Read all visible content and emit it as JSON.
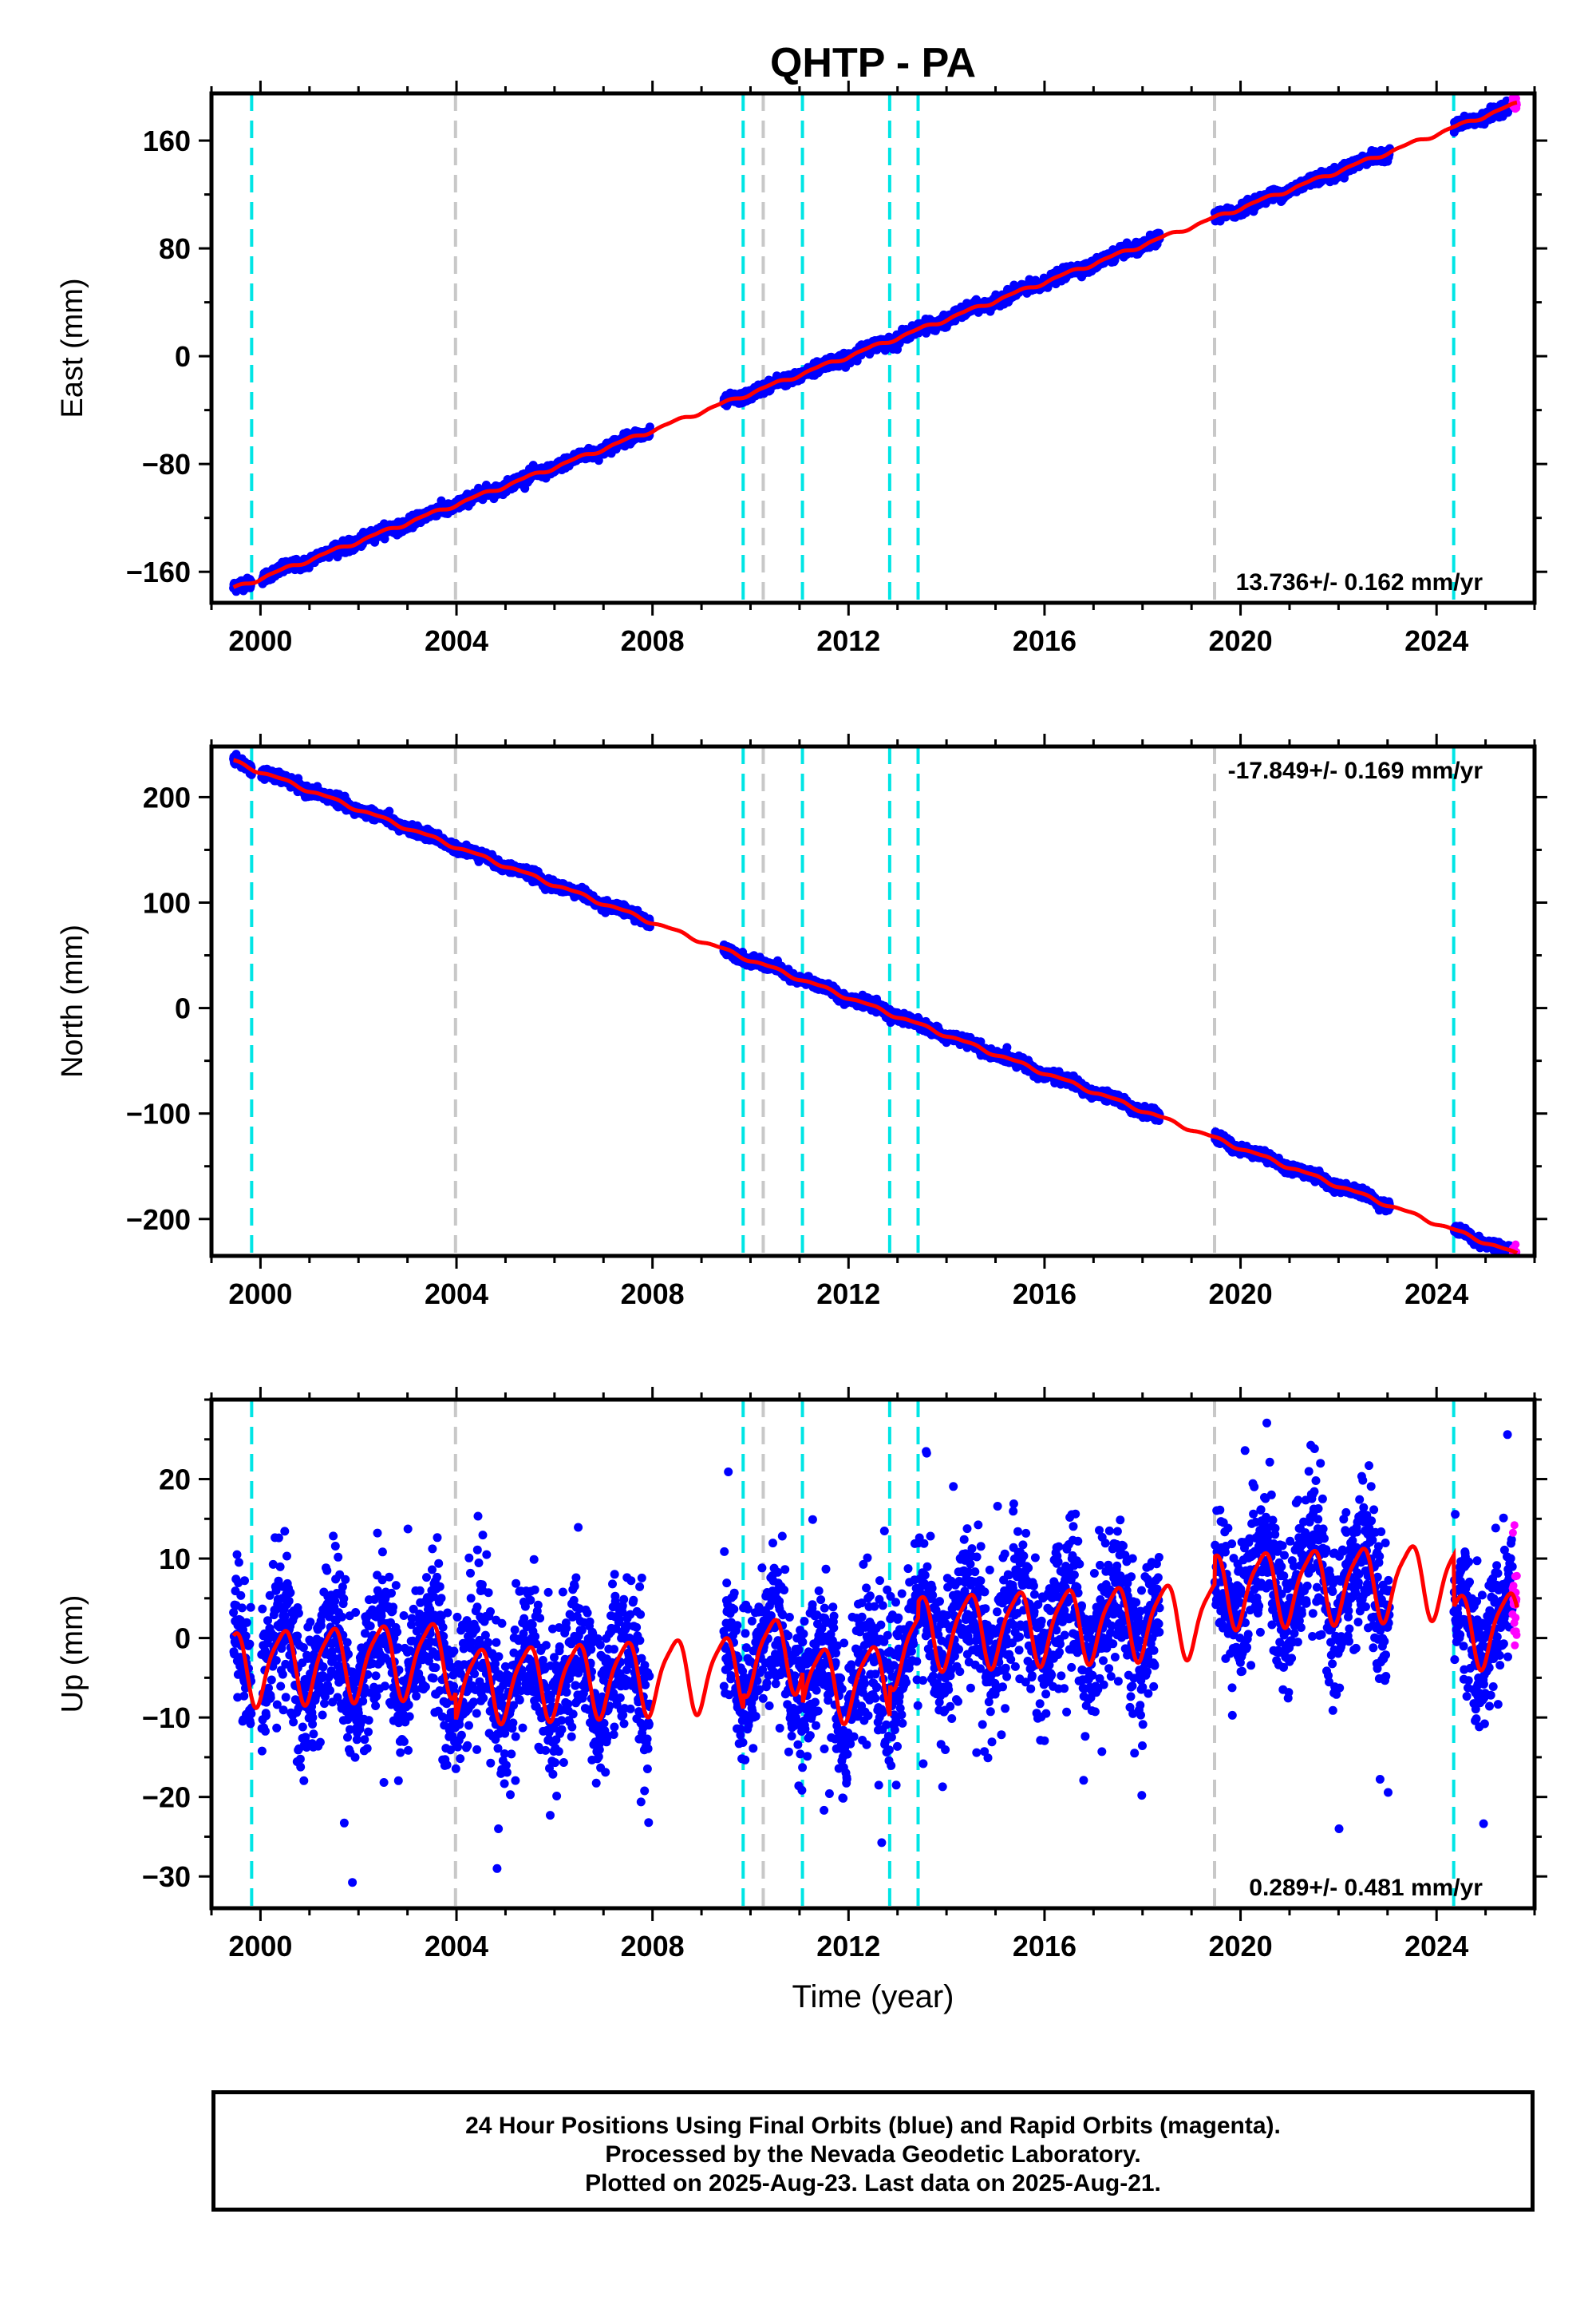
{
  "title": "QHTP - PA",
  "xlabel": "Time (year)",
  "colors": {
    "final": "#0000ff",
    "rapid": "#ff00ff",
    "model": "#ff0000",
    "equipment": "#00e5e5",
    "other": "#c8c8c8"
  },
  "offsets": {
    "cyan": [
      1999.82,
      2009.85,
      2011.06,
      2012.84,
      2013.42,
      2024.35
    ],
    "gray": [
      2003.98,
      2010.26,
      2019.47
    ]
  },
  "footer": {
    "line1": "24 Hour Positions Using Final Orbits (blue) and Rapid Orbits (magenta).",
    "line2": "Processed by the Nevada Geodetic Laboratory.",
    "line3": "Plotted on 2025-Aug-23. Last data on 2025-Aug-21."
  },
  "chart_data": [
    {
      "type": "scatter",
      "component": "East",
      "ylabel": "East (mm)",
      "rate": "13.736+/- 0.162 mm/yr",
      "xlim": [
        1999.0,
        2026.0
      ],
      "ylim": [
        -183,
        195
      ],
      "xticks": [
        2000,
        2004,
        2008,
        2012,
        2016,
        2020,
        2024
      ],
      "yticks": [
        -160,
        -80,
        0,
        80,
        160
      ],
      "data_gaps": [
        [
          1999.82,
          2000.02
        ],
        [
          2007.95,
          2009.45
        ],
        [
          2018.35,
          2019.47
        ],
        [
          2023.05,
          2024.35
        ]
      ],
      "series": [
        {
          "name": "Final Orbits",
          "x_range": [
            1999.45,
            2025.55
          ],
          "fit": {
            "rate": 13.736,
            "y_at_2012": 0.0,
            "annual_amp": 1.2,
            "semiannual_amp": 0.5
          },
          "scatter_sd": 2.0
        },
        {
          "name": "Rapid Orbits",
          "x_range": [
            2025.55,
            2025.64
          ],
          "fit": {
            "rate": 13.736,
            "y_at_2012": 0.0
          },
          "scatter_sd": 2.5
        }
      ]
    },
    {
      "type": "scatter",
      "component": "North",
      "ylabel": "North (mm)",
      "rate": "-17.849+/- 0.169 mm/yr",
      "xlim": [
        1999.0,
        2026.0
      ],
      "ylim": [
        -235,
        248
      ],
      "xticks": [
        2000,
        2004,
        2008,
        2012,
        2016,
        2020,
        2024
      ],
      "yticks": [
        -200,
        -100,
        0,
        100,
        200
      ],
      "data_gaps": [
        [
          1999.82,
          2000.02
        ],
        [
          2007.95,
          2009.45
        ],
        [
          2018.35,
          2019.47
        ],
        [
          2023.05,
          2024.35
        ]
      ],
      "series": [
        {
          "name": "Final Orbits",
          "x_range": [
            1999.45,
            2025.55
          ],
          "fit": {
            "rate": -17.849,
            "y_at_2012": 10.0,
            "annual_amp": 1.5,
            "semiannual_amp": 0.6
          },
          "scatter_sd": 2.3
        },
        {
          "name": "Rapid Orbits",
          "x_range": [
            2025.55,
            2025.64
          ],
          "fit": {
            "rate": -17.849,
            "y_at_2012": 10.0
          },
          "scatter_sd": 2.5
        }
      ]
    },
    {
      "type": "scatter",
      "component": "Up",
      "ylabel": "Up (mm)",
      "rate": "0.289+/- 0.481 mm/yr",
      "xlim": [
        1999.0,
        2026.0
      ],
      "ylim": [
        -34,
        30
      ],
      "xticks": [
        2000,
        2004,
        2008,
        2012,
        2016,
        2020,
        2024
      ],
      "yticks": [
        -30,
        -20,
        -10,
        0,
        10,
        20
      ],
      "data_gaps": [
        [
          1999.82,
          2000.02
        ],
        [
          2007.95,
          2009.45
        ],
        [
          2018.35,
          2019.47
        ],
        [
          2023.05,
          2024.35
        ]
      ],
      "model_levels": [
        {
          "from": 1999.0,
          "to": 2003.98,
          "level": 0.0
        },
        {
          "from": 2003.98,
          "to": 2009.85,
          "level": -3.5
        },
        {
          "from": 2009.85,
          "to": 2011.06,
          "level": -1.5
        },
        {
          "from": 2011.06,
          "to": 2012.84,
          "level": -5.5
        },
        {
          "from": 2012.84,
          "to": 2013.42,
          "level": -1.5
        },
        {
          "from": 2013.42,
          "to": 2019.47,
          "level": 0.5
        },
        {
          "from": 2019.47,
          "to": 2024.35,
          "level": 4.0
        },
        {
          "from": 2024.35,
          "to": 2026.0,
          "level": -2.5
        }
      ],
      "series": [
        {
          "name": "Final Orbits",
          "x_range": [
            1999.45,
            2025.55
          ],
          "fit": {
            "rate": 0.289,
            "annual_amp": 4.5,
            "semiannual_amp": 1.0
          },
          "scatter_sd": 4.5
        },
        {
          "name": "Rapid Orbits",
          "x_range": [
            2025.55,
            2025.64
          ],
          "fit": {
            "rate": 0.289
          },
          "scatter_sd": 5.0
        }
      ]
    }
  ]
}
